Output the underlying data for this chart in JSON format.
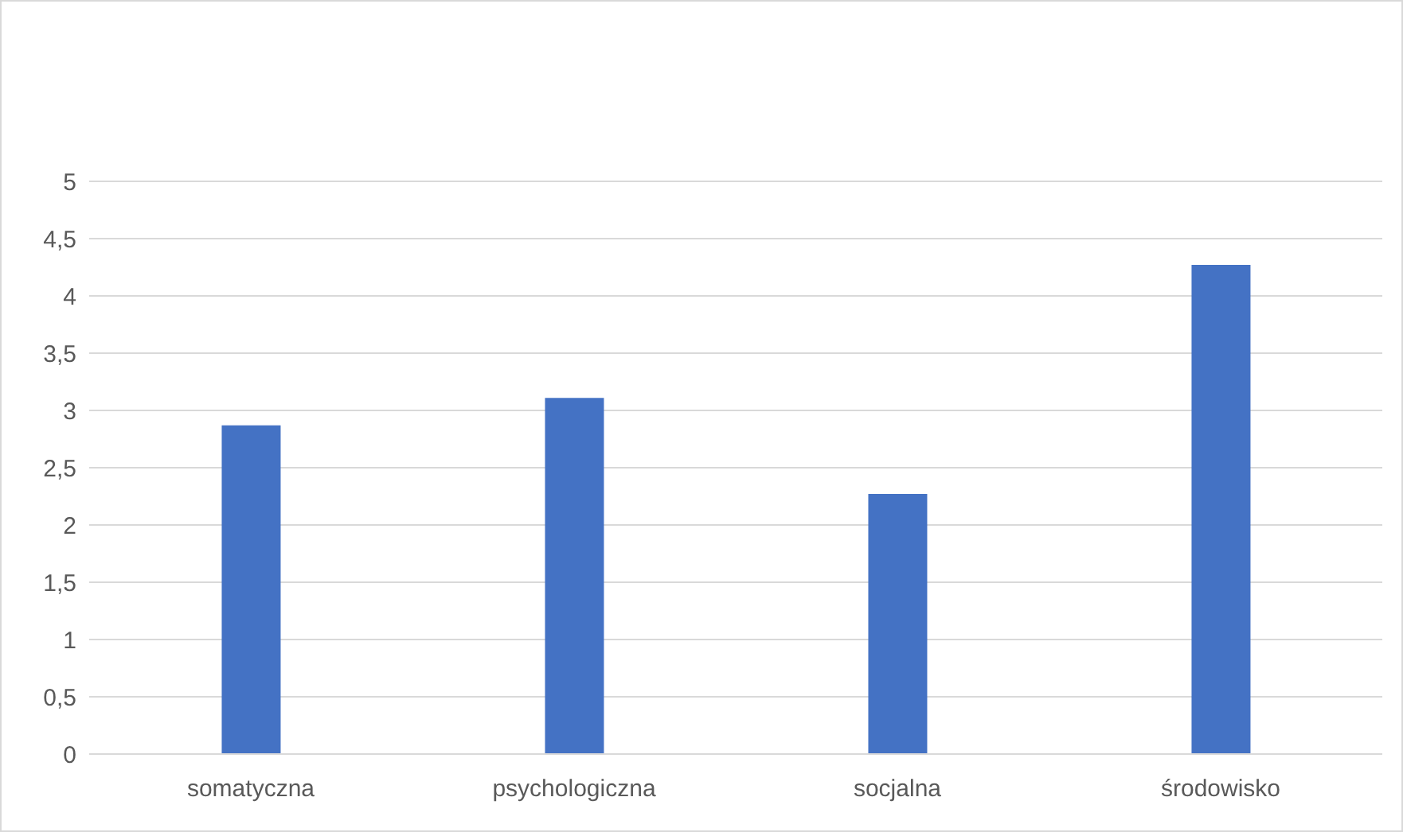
{
  "chart_data": {
    "type": "bar",
    "categories": [
      "somatyczna",
      "psychologiczna",
      "socjalna",
      "środowisko"
    ],
    "values": [
      2.87,
      3.11,
      2.27,
      4.27
    ],
    "color": "#4472c4",
    "ylim": [
      0,
      5
    ],
    "yticks": [
      0,
      {
        "value": 0.5,
        "label": "0,5"
      },
      1,
      {
        "value": 1.5,
        "label": "1,5"
      },
      2,
      {
        "value": 2.5,
        "label": "2,5"
      },
      3,
      {
        "value": 3.5,
        "label": "3,5"
      },
      4,
      {
        "value": 4.5,
        "label": "4,5"
      },
      5
    ],
    "grid": "y",
    "legend": false
  }
}
